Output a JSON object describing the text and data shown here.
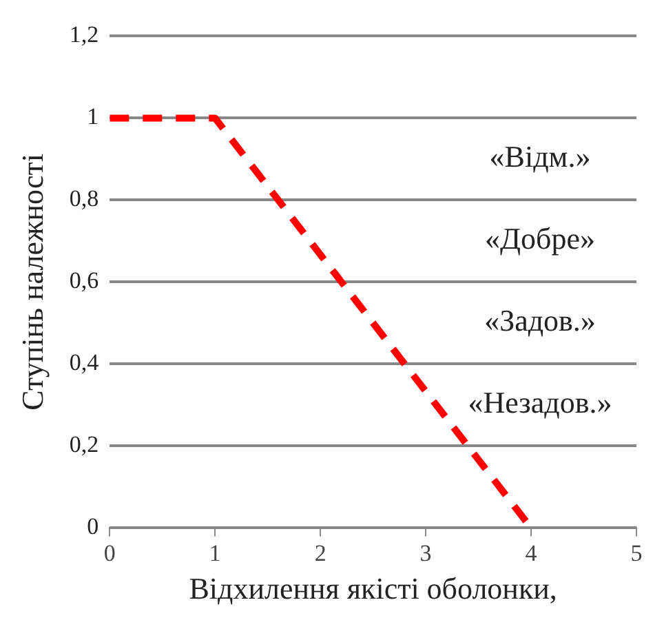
{
  "chart_data": {
    "type": "line",
    "xlabel": "Відхилення якісті оболонки,",
    "ylabel": "Ступінь належності",
    "x": [
      0,
      1,
      4
    ],
    "series": [
      {
        "color": "#ff0000",
        "values": [
          1,
          1,
          0
        ],
        "line_style": "dashed",
        "marker": "none"
      }
    ],
    "xlim": [
      0,
      5
    ],
    "xticks": [
      0,
      1,
      2,
      3,
      4,
      5
    ],
    "ylim": [
      0,
      1.2
    ],
    "yticks": [
      {
        "value": 0,
        "label": "0"
      },
      {
        "value": 0.2,
        "label": "0,2"
      },
      {
        "value": 0.4,
        "label": "0,4"
      },
      {
        "value": 0.6,
        "label": "0,6"
      },
      {
        "value": 0.8,
        "label": "0,8"
      },
      {
        "value": 1,
        "label": "1"
      },
      {
        "value": 1.2,
        "label": "1,2"
      }
    ],
    "grid": "y",
    "legend": false,
    "annotations": [
      "«Відм.»",
      "«Добре»",
      "«Задов.»",
      "«Незадов.»"
    ]
  }
}
